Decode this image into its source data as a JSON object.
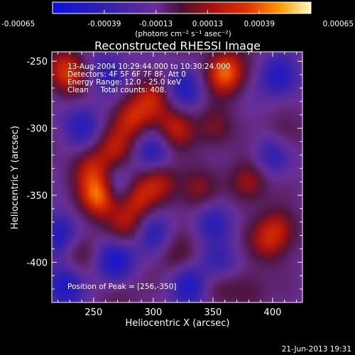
{
  "chart_data": {
    "type": "heatmap",
    "title": "Reconstructed RHESSI Image",
    "xlabel": "Heliocentric X (arcsec)",
    "ylabel": "Heliocentric Y (arcsec)",
    "xlim": [
      215,
      425
    ],
    "ylim": [
      -430,
      -243
    ],
    "x_ticks": [
      250,
      300,
      350,
      400
    ],
    "y_ticks": [
      -250,
      -300,
      -350,
      -400
    ],
    "colorbar": {
      "min": -0.00065,
      "max": 0.00065,
      "tick_labels": [
        "-0.00065",
        "-0.00039",
        "-0.00013",
        "0.00013",
        "0.00039",
        "0.00065"
      ],
      "unit_label": "(photons cm⁻² s⁻¹ asec⁻²)"
    },
    "annotations": [
      "13-Aug-2004 10:29:44.000 to 10:30:24.000",
      "Detectors: 4F 5F 6F 7F 8F, Att 0",
      "Energy Range: 12.0 - 25.0 keV",
      "Clean     Total counts: 408."
    ],
    "peak_label": "Position of Peak = [256,-350]",
    "peak": {
      "x": 256,
      "y": -350,
      "value": 0.00065
    },
    "sources": [
      {
        "x": 256,
        "y": -350,
        "value": 0.00065
      },
      {
        "x": 248,
        "y": -330,
        "value": 0.00032
      },
      {
        "x": 268,
        "y": -314,
        "value": 0.00028
      },
      {
        "x": 282,
        "y": -292,
        "value": 0.00036
      },
      {
        "x": 300,
        "y": -278,
        "value": 0.0003
      },
      {
        "x": 318,
        "y": -300,
        "value": 0.00034
      },
      {
        "x": 305,
        "y": -340,
        "value": 0.0003
      },
      {
        "x": 285,
        "y": -352,
        "value": 0.00034
      },
      {
        "x": 277,
        "y": -372,
        "value": 0.00026
      },
      {
        "x": 336,
        "y": -345,
        "value": 0.00024
      },
      {
        "x": 360,
        "y": -258,
        "value": 0.00055
      },
      {
        "x": 228,
        "y": -258,
        "value": 0.00045
      },
      {
        "x": 352,
        "y": -300,
        "value": 0.00022
      },
      {
        "x": 380,
        "y": -340,
        "value": 0.0003
      },
      {
        "x": 405,
        "y": -375,
        "value": 0.00028
      },
      {
        "x": 395,
        "y": -385,
        "value": 0.00024
      },
      {
        "x": 238,
        "y": -392,
        "value": 0.0002
      },
      {
        "x": 320,
        "y": -395,
        "value": 0.00018
      },
      {
        "x": 355,
        "y": -415,
        "value": 0.0002
      },
      {
        "x": 380,
        "y": -420,
        "value": 0.00016
      },
      {
        "x": 270,
        "y": -425,
        "value": 0.00012
      },
      {
        "x": 410,
        "y": -305,
        "value": 0.00016
      },
      {
        "x": 220,
        "y": -380,
        "value": -0.00038
      },
      {
        "x": 240,
        "y": -298,
        "value": -0.0003
      },
      {
        "x": 300,
        "y": -318,
        "value": -0.0003
      },
      {
        "x": 268,
        "y": -345,
        "value": -0.00036
      },
      {
        "x": 325,
        "y": -270,
        "value": -0.00032
      },
      {
        "x": 262,
        "y": -258,
        "value": -0.00028
      },
      {
        "x": 405,
        "y": -262,
        "value": -0.00036
      },
      {
        "x": 400,
        "y": -320,
        "value": -0.00028
      },
      {
        "x": 350,
        "y": -370,
        "value": -0.00026
      },
      {
        "x": 300,
        "y": -378,
        "value": -0.00026
      },
      {
        "x": 268,
        "y": -398,
        "value": -0.00042
      },
      {
        "x": 228,
        "y": -418,
        "value": -0.00038
      },
      {
        "x": 330,
        "y": -418,
        "value": -0.00034
      },
      {
        "x": 355,
        "y": -403,
        "value": -0.0003
      }
    ]
  },
  "footer": {
    "timestamp": "21-Jun-2013 19:31"
  }
}
